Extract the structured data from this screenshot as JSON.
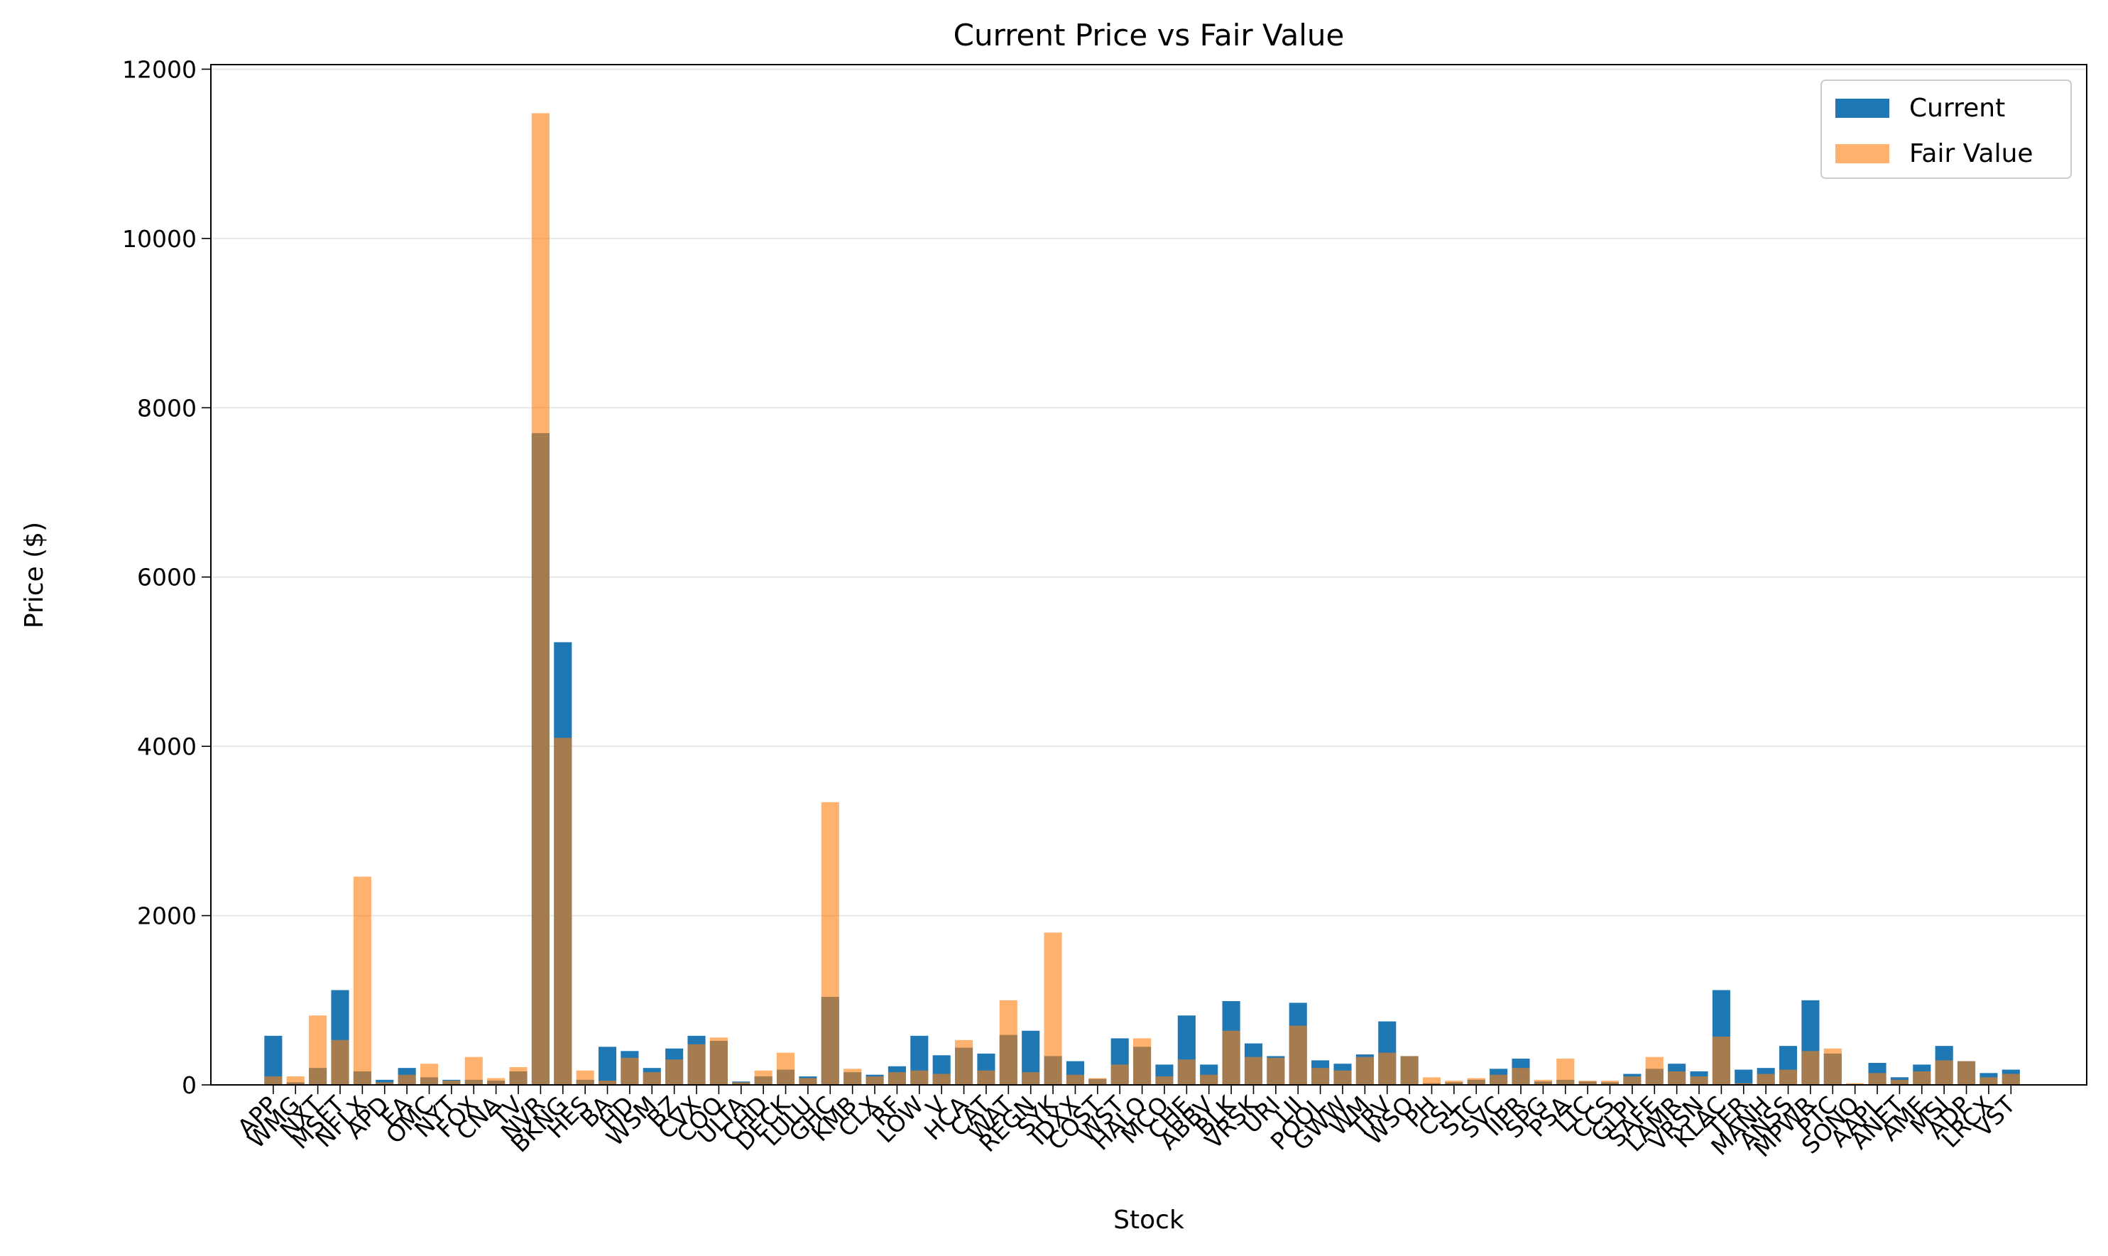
{
  "chart_data": {
    "type": "bar",
    "title": "Current Price vs Fair Value",
    "xlabel": "Stock",
    "ylabel": "Price ($)",
    "categories": [
      "APP",
      "WMG",
      "NXT",
      "MSFT",
      "NFLX",
      "APD",
      "EA",
      "OMC",
      "NYT",
      "FOX",
      "CNA",
      "TV",
      "NVR",
      "BKNG",
      "HES",
      "BA",
      "HD",
      "WSM",
      "BZ",
      "CVX",
      "COO",
      "ULTA",
      "CHD",
      "DECK",
      "LULU",
      "GHC",
      "KMB",
      "CLX",
      "RF",
      "LOW",
      "V",
      "HCA",
      "CAT",
      "WAT",
      "REGN",
      "SYK",
      "IDXX",
      "COST",
      "WST",
      "HALO",
      "MCO",
      "CHE",
      "ABBV",
      "BLK",
      "VRSK",
      "URI",
      "LII",
      "POOL",
      "GWW",
      "WM",
      "TRV",
      "WSO",
      "PH",
      "CSL",
      "STC",
      "SVC",
      "IIPR",
      "SPG",
      "PSA",
      "LTC",
      "CCS",
      "GLPI",
      "SAFE",
      "LAMR",
      "VRSN",
      "KLAC",
      "TER",
      "MANH",
      "ANSS",
      "MPWR",
      "PTC",
      "SONO",
      "AAPL",
      "ANET",
      "AME",
      "MSI",
      "ADP",
      "LRCX",
      "VST"
    ],
    "series": [
      {
        "name": "Current",
        "color": "#1f77b4",
        "opacity": 1,
        "values": [
          580,
          30,
          200,
          1120,
          160,
          60,
          200,
          90,
          60,
          60,
          50,
          160,
          7700,
          5230,
          60,
          450,
          400,
          200,
          430,
          580,
          520,
          40,
          100,
          180,
          100,
          1040,
          150,
          120,
          220,
          580,
          350,
          440,
          370,
          590,
          640,
          340,
          280,
          70,
          550,
          450,
          240,
          820,
          240,
          990,
          490,
          340,
          970,
          290,
          250,
          360,
          750,
          340,
          20,
          30,
          60,
          190,
          310,
          40,
          60,
          40,
          30,
          130,
          190,
          250,
          160,
          1120,
          180,
          200,
          460,
          1000,
          370,
          10,
          260,
          90,
          240,
          460,
          280,
          140,
          180
        ]
      },
      {
        "name": "Fair Value",
        "color": "#ff7f0e",
        "opacity": 0.6,
        "values": [
          100,
          100,
          820,
          530,
          2460,
          30,
          120,
          250,
          50,
          330,
          80,
          210,
          11480,
          4100,
          170,
          50,
          320,
          150,
          300,
          480,
          560,
          30,
          170,
          380,
          80,
          3340,
          190,
          100,
          150,
          170,
          130,
          530,
          170,
          1000,
          150,
          1800,
          120,
          80,
          240,
          550,
          100,
          300,
          120,
          640,
          330,
          320,
          700,
          200,
          170,
          330,
          380,
          340,
          90,
          50,
          80,
          120,
          200,
          60,
          310,
          50,
          50,
          100,
          330,
          160,
          100,
          570,
          20,
          130,
          180,
          400,
          430,
          20,
          140,
          60,
          160,
          290,
          280,
          90,
          130
        ]
      }
    ],
    "ylim": [
      0,
      12054
    ],
    "yticks": [
      0,
      2000,
      4000,
      6000,
      8000,
      10000,
      12000
    ],
    "grid": true,
    "legend": "upper right"
  }
}
